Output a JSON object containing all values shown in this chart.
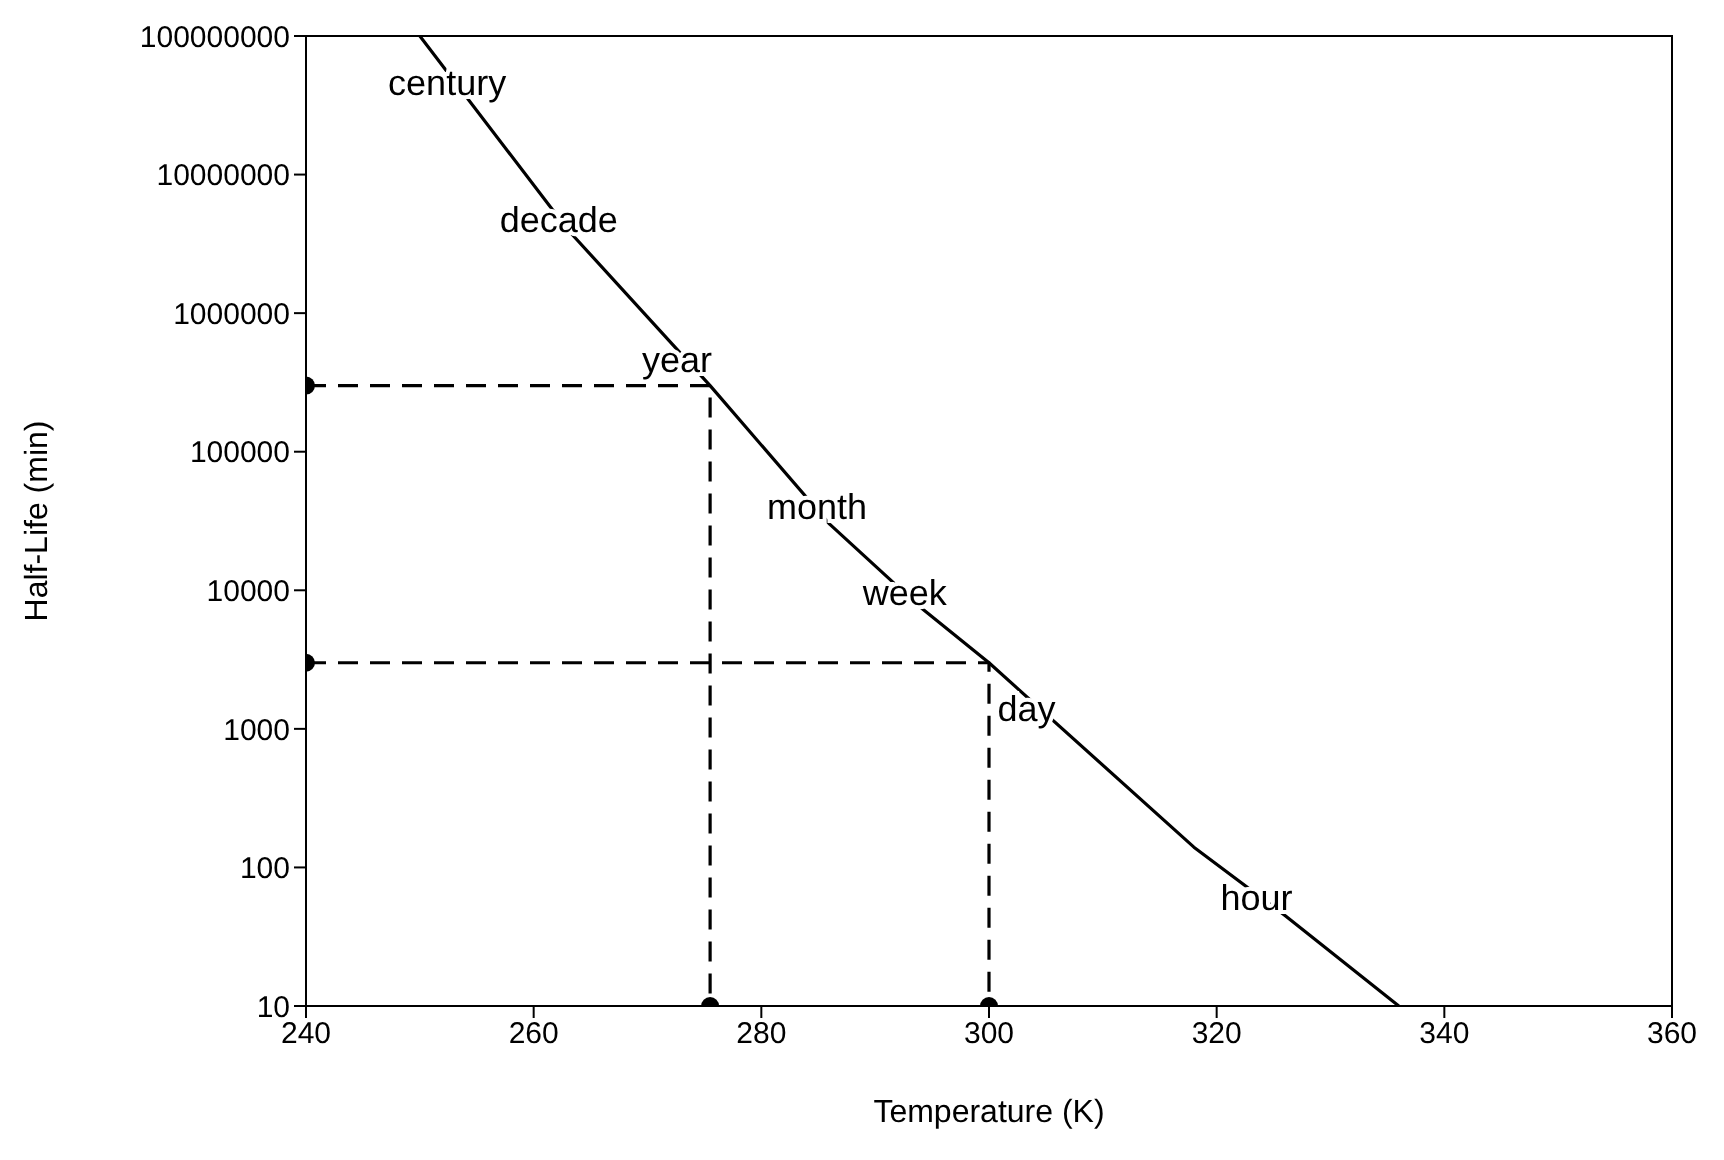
{
  "chart_data": {
    "type": "line",
    "xlabel": "Temperature (K)",
    "ylabel": "Half-Life (min)",
    "log": true,
    "xlim": [
      240,
      360
    ],
    "xticks": [
      240,
      260,
      280,
      300,
      320,
      340,
      360
    ],
    "ylim": [
      10,
      100000000
    ],
    "yticks": [
      10,
      100,
      1000,
      10000,
      100000,
      1000000,
      10000000,
      100000000
    ],
    "series": [
      {
        "type": "line",
        "color": "#000000",
        "line_style": "solid",
        "marker": "none",
        "x": [
          250,
          263,
          275.5,
          286,
          294,
          300,
          318,
          326,
          336
        ],
        "values": [
          100000000,
          4000000,
          300000,
          30000,
          7500,
          3000,
          140,
          45,
          10
        ]
      },
      {
        "type": "line",
        "color": "#000000",
        "line_style": "dashed",
        "marker": "none",
        "x": [
          240,
          275.5,
          275.5
        ],
        "values": [
          300000,
          300000,
          10
        ]
      },
      {
        "type": "line",
        "color": "#000000",
        "line_style": "dashed",
        "marker": "none",
        "x": [
          240,
          300,
          300
        ],
        "values": [
          3000,
          3000,
          10
        ]
      },
      {
        "type": "scatter",
        "color": "#000000",
        "marker": "circle",
        "x": [
          240,
          240,
          275.5,
          300
        ],
        "values": [
          300000,
          3000,
          10,
          10
        ]
      }
    ],
    "annotations": [
      {
        "text": "century",
        "x": 252.4,
        "y": 46000000
      },
      {
        "text": "decade",
        "x": 262.2,
        "y": 4700000
      },
      {
        "text": "year",
        "x": 272.6,
        "y": 460000
      },
      {
        "text": "month",
        "x": 284.9,
        "y": 40000
      },
      {
        "text": "week",
        "x": 292.6,
        "y": 9500
      },
      {
        "text": "day",
        "x": 303.3,
        "y": 1400
      },
      {
        "text": "hour",
        "x": 323.5,
        "y": 60
      }
    ]
  }
}
